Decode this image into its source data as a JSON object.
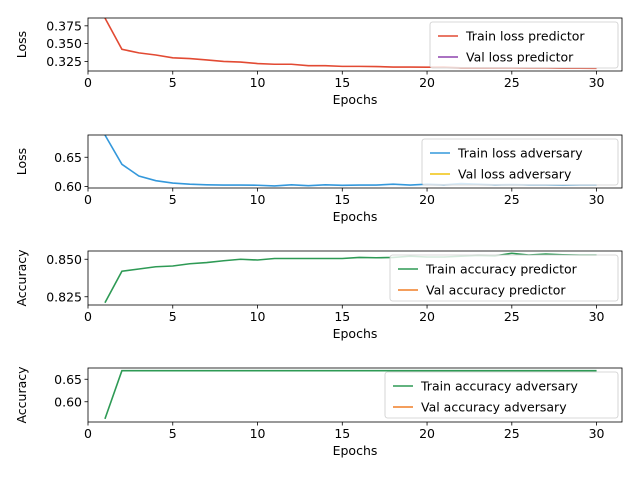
{
  "chart_data": [
    {
      "type": "line",
      "xlabel": "Epochs",
      "ylabel": "Loss",
      "xlim": [
        0,
        31.5
      ],
      "ylim": [
        0.3115,
        0.386
      ],
      "xticks": [
        0,
        5,
        10,
        15,
        20,
        25,
        30
      ],
      "yticks": [
        0.325,
        0.35,
        0.375
      ],
      "ytick_labels": [
        "0.325",
        "0.350",
        "0.375"
      ],
      "legend_position": "top-right",
      "series": [
        {
          "name": "Train loss predictor",
          "color": "#e24a33",
          "x": [
            1,
            2,
            3,
            4,
            5,
            6,
            7,
            8,
            9,
            10,
            11,
            12,
            13,
            14,
            15,
            16,
            17,
            18,
            19,
            20,
            21,
            22,
            23,
            24,
            25,
            26,
            27,
            28,
            29,
            30
          ],
          "y": [
            0.386,
            0.342,
            0.337,
            0.334,
            0.33,
            0.329,
            0.327,
            0.325,
            0.324,
            0.322,
            0.321,
            0.321,
            0.319,
            0.319,
            0.318,
            0.318,
            0.3178,
            0.317,
            0.317,
            0.3168,
            0.317,
            0.316,
            0.316,
            0.316,
            0.316,
            0.3158,
            0.3158,
            0.3155,
            0.3155,
            0.3152
          ]
        },
        {
          "name": "Val loss predictor",
          "color": "#8e44ad",
          "x": [],
          "y": []
        }
      ]
    },
    {
      "type": "line",
      "xlabel": "Epochs",
      "ylabel": "Loss",
      "xlim": [
        0,
        31.5
      ],
      "ylim": [
        0.5975,
        0.688
      ],
      "xticks": [
        0,
        5,
        10,
        15,
        20,
        25,
        30
      ],
      "yticks": [
        0.6,
        0.65
      ],
      "ytick_labels": [
        "0.60",
        "0.65"
      ],
      "legend_position": "top-right",
      "series": [
        {
          "name": "Train loss adversary",
          "color": "#3498db",
          "x": [
            1,
            2,
            3,
            4,
            5,
            6,
            7,
            8,
            9,
            10,
            11,
            12,
            13,
            14,
            15,
            16,
            17,
            18,
            19,
            20,
            21,
            22,
            23,
            24,
            25,
            26,
            27,
            28,
            29,
            30
          ],
          "y": [
            0.688,
            0.638,
            0.618,
            0.61,
            0.606,
            0.604,
            0.603,
            0.6025,
            0.6025,
            0.6022,
            0.601,
            0.603,
            0.6015,
            0.603,
            0.602,
            0.6025,
            0.6025,
            0.604,
            0.6025,
            0.604,
            0.603,
            0.605,
            0.604,
            0.603,
            0.6035,
            0.603,
            0.603,
            0.6025,
            0.603,
            0.603
          ]
        },
        {
          "name": "Val loss adversary",
          "color": "#f1c40f",
          "x": [],
          "y": []
        }
      ]
    },
    {
      "type": "line",
      "xlabel": "Epochs",
      "ylabel": "Accuracy",
      "xlim": [
        0,
        31.5
      ],
      "ylim": [
        0.8195,
        0.8555
      ],
      "xticks": [
        0,
        5,
        10,
        15,
        20,
        25,
        30
      ],
      "yticks": [
        0.825,
        0.85
      ],
      "ytick_labels": [
        "0.825",
        "0.850"
      ],
      "legend_position": "lower-right",
      "series": [
        {
          "name": "Train accuracy predictor",
          "color": "#2e9a55",
          "x": [
            1,
            2,
            3,
            4,
            5,
            6,
            7,
            8,
            9,
            10,
            11,
            12,
            13,
            14,
            15,
            16,
            17,
            18,
            19,
            20,
            21,
            22,
            23,
            24,
            25,
            26,
            27,
            28,
            29,
            30
          ],
          "y": [
            0.821,
            0.842,
            0.8435,
            0.845,
            0.8455,
            0.847,
            0.8478,
            0.849,
            0.85,
            0.8495,
            0.8505,
            0.8505,
            0.8505,
            0.8505,
            0.8505,
            0.8512,
            0.851,
            0.8512,
            0.852,
            0.8515,
            0.8515,
            0.852,
            0.8525,
            0.8522,
            0.854,
            0.8528,
            0.8535,
            0.853,
            0.8527,
            0.8527
          ]
        },
        {
          "name": "Val accuracy predictor",
          "color": "#f07e26",
          "x": [],
          "y": []
        }
      ]
    },
    {
      "type": "line",
      "xlabel": "Epochs",
      "ylabel": "Accuracy",
      "xlim": [
        0,
        31.5
      ],
      "ylim": [
        0.555,
        0.675
      ],
      "xticks": [
        0,
        5,
        10,
        15,
        20,
        25,
        30
      ],
      "yticks": [
        0.6,
        0.65
      ],
      "ytick_labels": [
        "0.60",
        "0.65"
      ],
      "legend_position": "top-right",
      "series": [
        {
          "name": "Train accuracy adversary",
          "color": "#2e9a55",
          "x": [
            1,
            2,
            3,
            4,
            5,
            6,
            7,
            8,
            9,
            10,
            11,
            12,
            13,
            14,
            15,
            16,
            17,
            18,
            19,
            20,
            21,
            22,
            23,
            24,
            25,
            26,
            27,
            28,
            29,
            30
          ],
          "y": [
            0.562,
            0.669,
            0.669,
            0.669,
            0.669,
            0.669,
            0.669,
            0.669,
            0.669,
            0.669,
            0.669,
            0.669,
            0.669,
            0.669,
            0.669,
            0.669,
            0.669,
            0.669,
            0.669,
            0.669,
            0.669,
            0.669,
            0.669,
            0.669,
            0.669,
            0.669,
            0.669,
            0.669,
            0.669,
            0.669
          ]
        },
        {
          "name": "Val accuracy adversary",
          "color": "#f07e26",
          "x": [],
          "y": []
        }
      ]
    }
  ]
}
